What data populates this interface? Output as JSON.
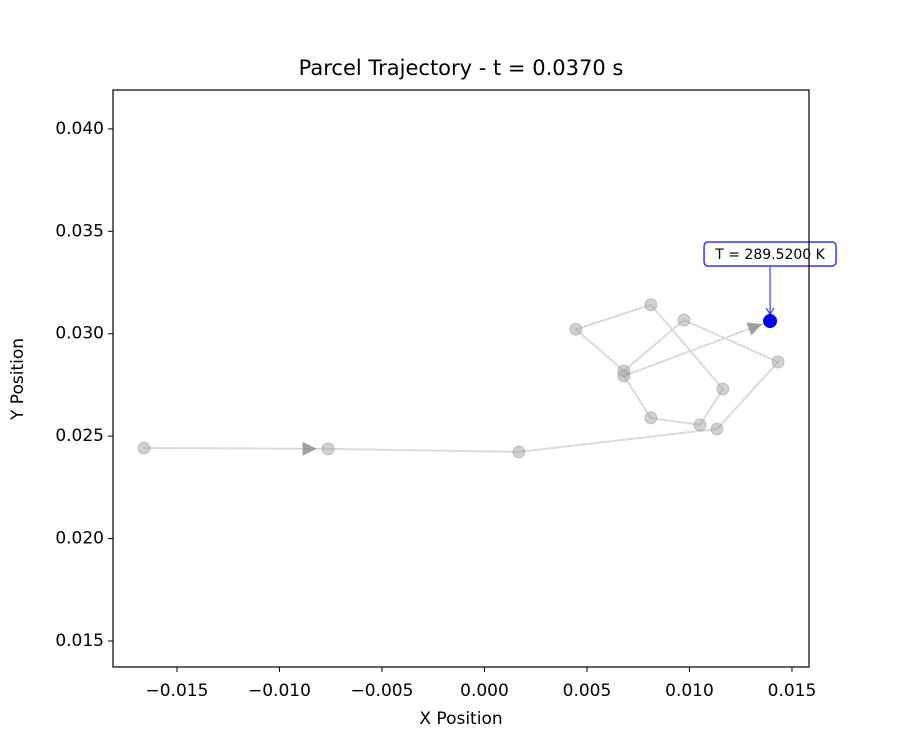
{
  "chart_data": {
    "type": "line",
    "title": "Parcel Trajectory - t = 0.0370 s",
    "xlabel": "X Position",
    "ylabel": "Y Position",
    "x": [
      -0.01661,
      -0.00763,
      0.00168,
      0.01134,
      0.01432,
      0.00973,
      0.0068,
      0.00446,
      0.00812,
      0.01163,
      0.01051,
      0.00812,
      0.0068,
      0.01393
    ],
    "values": [
      0.02442,
      0.02438,
      0.02423,
      0.02535,
      0.02862,
      0.03067,
      0.02818,
      0.03022,
      0.03141,
      0.0273,
      0.02555,
      0.02589,
      0.02794,
      0.03062
    ],
    "color": "#bbbbbb",
    "highlight_color": "#0000ee",
    "annotation": "T = 289.5200 K",
    "xlim": [
      -0.01812,
      0.01583
    ],
    "ylim": [
      0.01373,
      0.0419
    ],
    "xticks": [
      {
        "value": -0.015,
        "label": "−0.015"
      },
      {
        "value": -0.01,
        "label": "−0.010"
      },
      {
        "value": -0.005,
        "label": "−0.005"
      },
      {
        "value": 0,
        "label": "0.000"
      },
      {
        "value": 0.005,
        "label": "0.005"
      },
      {
        "value": 0.01,
        "label": "0.010"
      },
      {
        "value": 0.015,
        "label": "0.015"
      }
    ],
    "yticks": [
      {
        "value": 0.015,
        "label": "0.015"
      },
      {
        "value": 0.02,
        "label": "0.020"
      },
      {
        "value": 0.025,
        "label": "0.025"
      },
      {
        "value": 0.03,
        "label": "0.030"
      },
      {
        "value": 0.035,
        "label": "0.035"
      },
      {
        "value": 0.04,
        "label": "0.040"
      }
    ],
    "grid": false
  }
}
